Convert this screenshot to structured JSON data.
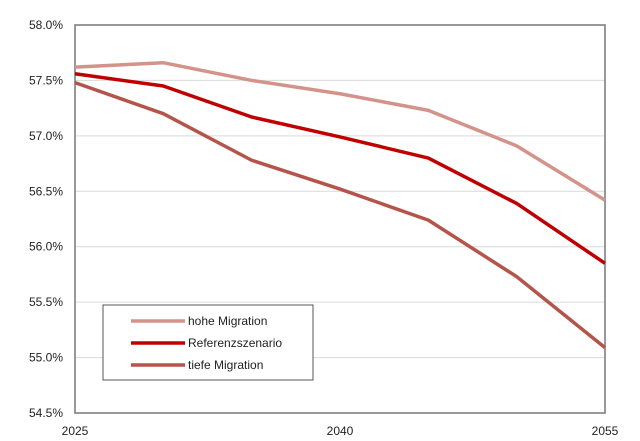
{
  "chart_data": {
    "type": "line",
    "title": "",
    "xlabel": "",
    "ylabel": "",
    "x": [
      2025,
      2030,
      2035,
      2040,
      2045,
      2050,
      2055
    ],
    "xticks": [
      "2025",
      "2040",
      "2055"
    ],
    "ylim": [
      0.545,
      0.58
    ],
    "yticks": [
      "54.5%",
      "55.0%",
      "55.5%",
      "56.0%",
      "56.5%",
      "57.0%",
      "57.5%",
      "58.0%"
    ],
    "grid": true,
    "legend_position": "bottom-left",
    "series": [
      {
        "name": "hohe Migration",
        "color": "#d4938a",
        "values": [
          0.5762,
          0.5766,
          0.575,
          0.5738,
          0.5723,
          0.5691,
          0.5642
        ]
      },
      {
        "name": "Referenzszenario",
        "color": "#c00000",
        "values": [
          0.5756,
          0.5745,
          0.5717,
          0.5699,
          0.568,
          0.5639,
          0.5585
        ]
      },
      {
        "name": "tiefe Migration",
        "color": "#b5544a",
        "values": [
          0.5748,
          0.572,
          0.5678,
          0.5652,
          0.5624,
          0.5573,
          0.5509
        ]
      }
    ]
  }
}
